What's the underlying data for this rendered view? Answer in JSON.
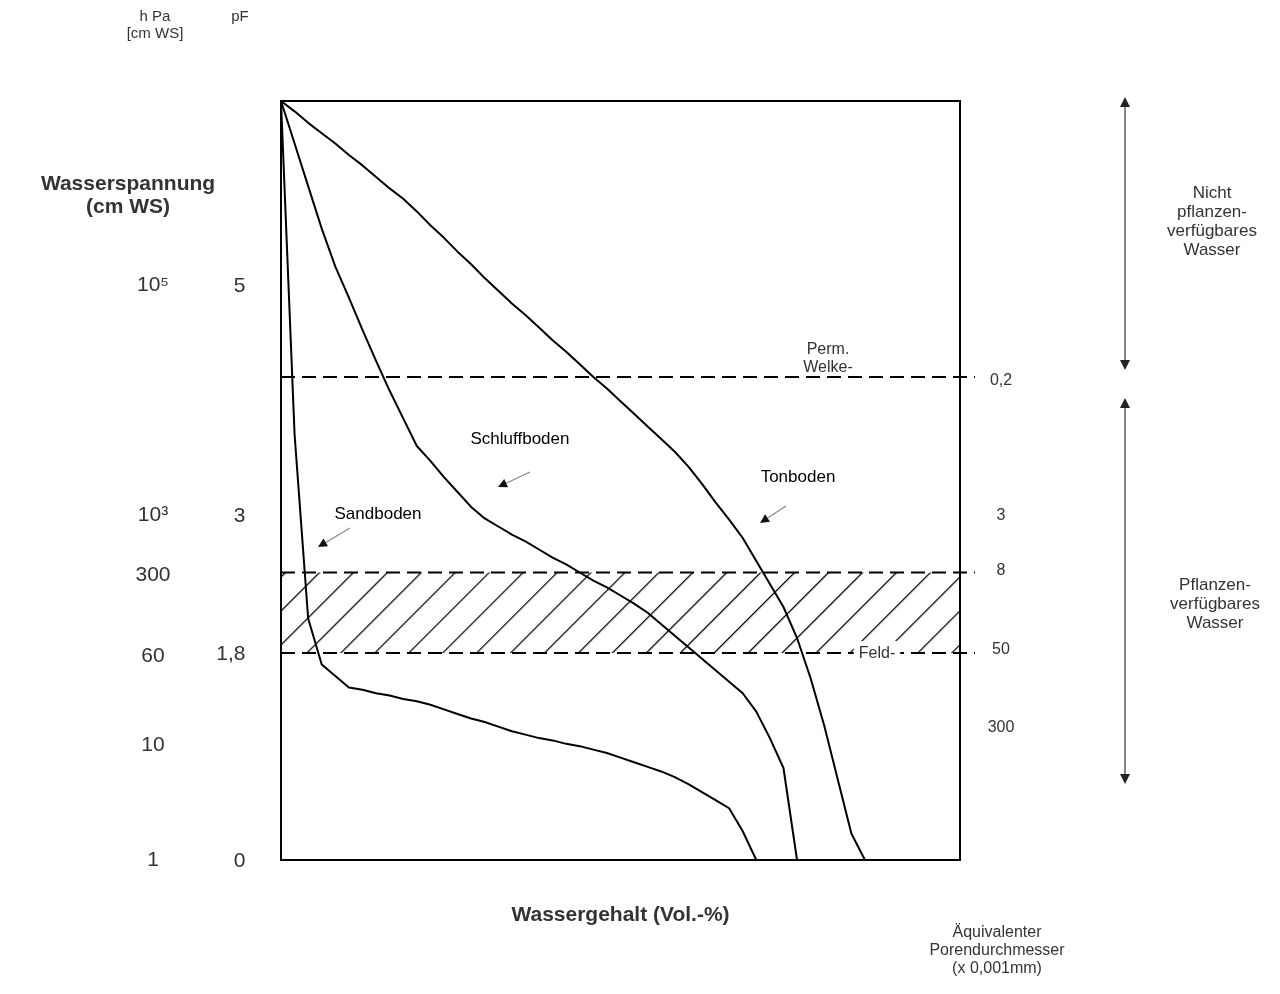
{
  "chart_data": {
    "type": "line",
    "xlabel": "Wassergehalt (Vol.-%)",
    "categories": [
      null,
      null,
      null,
      null,
      null,
      null,
      null,
      null,
      null,
      null,
      null,
      null,
      null,
      null,
      null,
      null,
      null,
      null,
      null,
      null,
      null,
      null,
      null,
      null,
      null,
      null,
      null,
      null,
      null,
      null,
      null,
      null,
      null,
      null,
      null,
      null,
      null,
      null,
      null,
      null,
      null,
      null,
      null,
      null,
      null,
      null,
      null,
      null,
      null,
      null,
      null
    ],
    "tick_labels": "y",
    "log": "y2",
    "ylim": [
      0,
      6.6
    ],
    "yticks": [
      0,
      {
        "value": 1.8,
        "label": "1,8"
      },
      3,
      5
    ],
    "y2lim": [
      1,
      4000000
    ],
    "y2ticks": [
      1,
      10,
      60,
      300,
      {
        "value": 1000,
        "label": "10³"
      },
      {
        "value": 100000,
        "label": "10⁵"
      }
    ],
    "series": [
      {
        "name": "Sandboden",
        "color": "#000000",
        "values": [
          6.6,
          3.7,
          2.1,
          1.7,
          1.6,
          1.5,
          1.48,
          1.45,
          1.43,
          1.4,
          1.38,
          1.35,
          1.31,
          1.27,
          1.23,
          1.2,
          1.16,
          1.12,
          1.09,
          1.06,
          1.04,
          1.01,
          0.99,
          0.96,
          0.93,
          0.89,
          0.85,
          0.81,
          0.77,
          0.72,
          0.66,
          0.59,
          0.52,
          0.45,
          0.25,
          0,
          null,
          null,
          null,
          null,
          null,
          null,
          null,
          null,
          null,
          null,
          null,
          null,
          null,
          null,
          null
        ]
      },
      {
        "name": "Schluffboden",
        "color": "#000000",
        "values": [
          6.6,
          6.23,
          5.86,
          5.49,
          5.16,
          4.89,
          4.61,
          4.34,
          4.08,
          3.84,
          3.6,
          3.47,
          3.33,
          3.2,
          3.07,
          2.97,
          2.9,
          2.83,
          2.77,
          2.7,
          2.63,
          2.57,
          2.5,
          2.43,
          2.37,
          2.3,
          2.23,
          2.15,
          2.05,
          1.95,
          1.85,
          1.75,
          1.65,
          1.55,
          1.45,
          1.29,
          1.06,
          0.8,
          0,
          null,
          null,
          null,
          null,
          null,
          null,
          null,
          null,
          null,
          null,
          null,
          null
        ]
      },
      {
        "name": "Tonboden",
        "color": "#000000",
        "values": [
          6.6,
          6.51,
          6.41,
          6.32,
          6.23,
          6.13,
          6.04,
          5.94,
          5.84,
          5.75,
          5.64,
          5.52,
          5.41,
          5.29,
          5.18,
          5.06,
          4.95,
          4.84,
          4.74,
          4.63,
          4.52,
          4.42,
          4.31,
          4.2,
          4.1,
          3.99,
          3.88,
          3.77,
          3.66,
          3.55,
          3.42,
          3.27,
          3.11,
          2.96,
          2.8,
          2.6,
          2.4,
          2.2,
          1.93,
          1.58,
          1.17,
          0.7,
          0.23,
          0,
          null,
          null,
          null,
          null,
          null,
          null,
          null
        ]
      }
    ],
    "ref_lines": [
      {
        "axis": "y",
        "value": 4.2,
        "label": "Perm.\nWelke-",
        "line_style": "dashed"
      }
    ],
    "bands": [
      {
        "axis": "y",
        "from": 1.8,
        "to": 2.5,
        "label": "Feld-"
      }
    ],
    "annotations": [
      "Wasserspannung\n(cm WS)",
      "pF",
      "h Pa\n[cm WS]",
      "Nicht\npflanzen-\nverfügbares\nWasser",
      "Pflanzen-\nverfügbares\nWasser",
      "Äquivalenter\nPorendurchmesser\n(x 0,001mm)",
      "0,2",
      "3",
      "8",
      "50",
      "300"
    ]
  }
}
